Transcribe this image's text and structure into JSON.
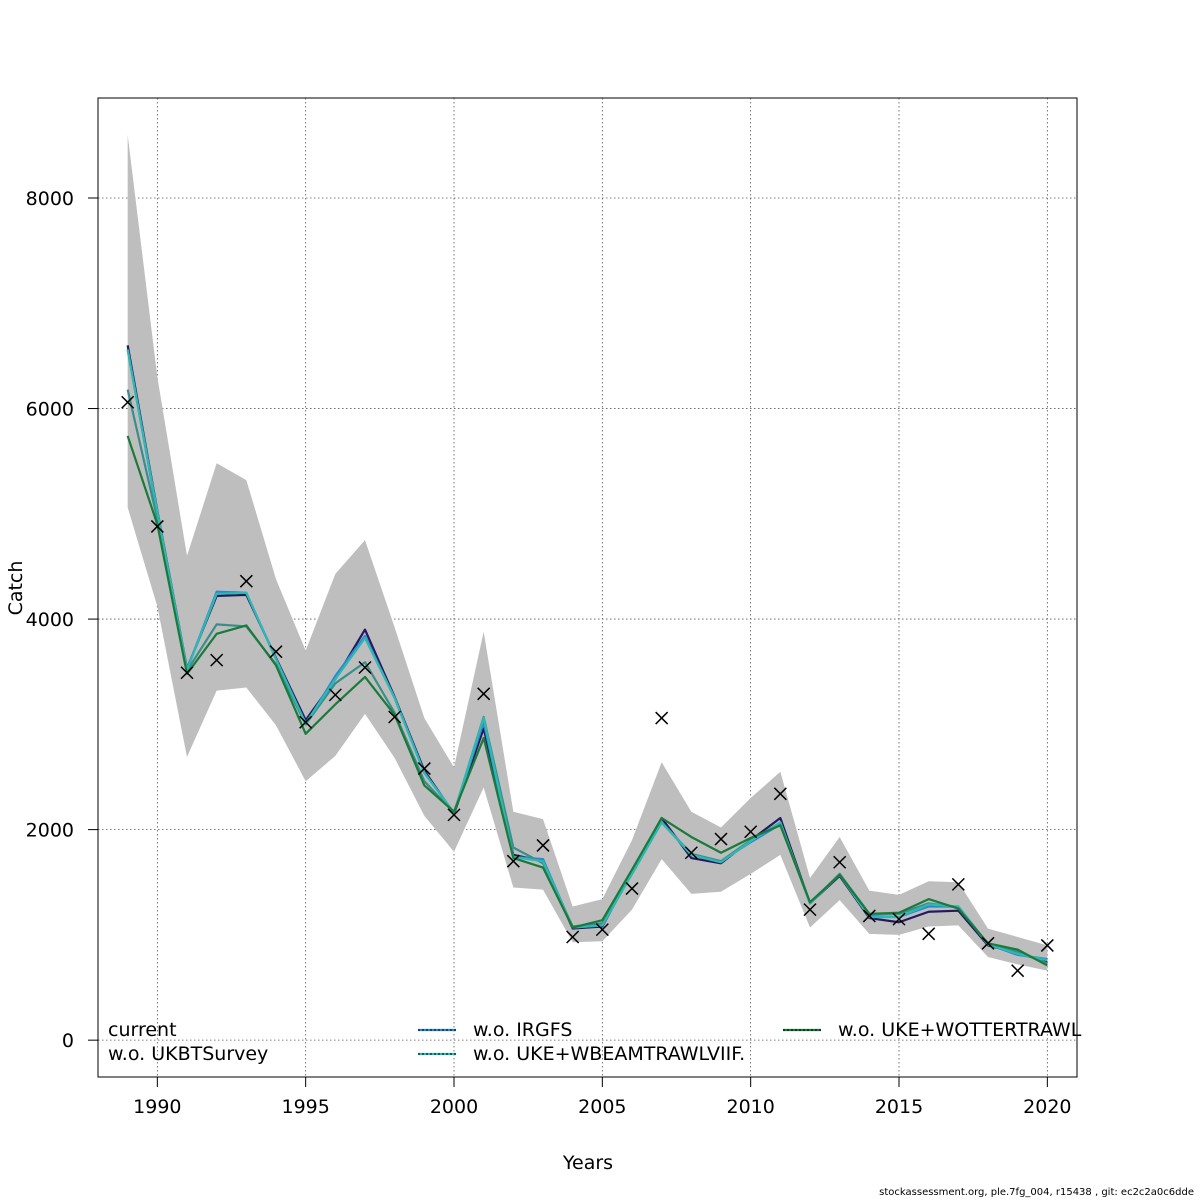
{
  "chart_data": {
    "type": "line",
    "xlabel": "Years",
    "ylabel": "Catch",
    "xlim": [
      1988,
      2021
    ],
    "ylim": [
      -350,
      8950
    ],
    "x_ticks": [
      1990,
      1995,
      2000,
      2005,
      2010,
      2015,
      2020
    ],
    "y_ticks": [
      0,
      2000,
      4000,
      6000,
      8000
    ],
    "grid": true,
    "legend_position": "bottom",
    "x": [
      1989,
      1990,
      1991,
      1992,
      1993,
      1994,
      1995,
      1996,
      1997,
      1998,
      1999,
      2000,
      2001,
      2002,
      2003,
      2004,
      2005,
      2006,
      2007,
      2008,
      2009,
      2010,
      2011,
      2012,
      2013,
      2014,
      2015,
      2016,
      2017,
      2018,
      2019,
      2020
    ],
    "band": {
      "upper": [
        8600,
        6300,
        4600,
        5480,
        5320,
        4380,
        3700,
        4430,
        4750,
        3920,
        3060,
        2590,
        3880,
        2170,
        2100,
        1270,
        1340,
        1900,
        2640,
        2170,
        2020,
        2300,
        2550,
        1540,
        1930,
        1420,
        1380,
        1510,
        1500,
        1060,
        980,
        900
      ],
      "lower": [
        5060,
        4120,
        2690,
        3320,
        3350,
        2990,
        2460,
        2700,
        3100,
        2680,
        2130,
        1790,
        2400,
        1450,
        1430,
        930,
        940,
        1240,
        1720,
        1390,
        1410,
        1580,
        1760,
        1070,
        1330,
        1010,
        1000,
        1080,
        1090,
        790,
        720,
        660
      ]
    },
    "observed": [
      6060,
      4880,
      3490,
      3610,
      4360,
      3690,
      3020,
      3280,
      3540,
      3070,
      2580,
      2140,
      3290,
      1700,
      1850,
      980,
      1050,
      1440,
      3060,
      1780,
      1910,
      1980,
      2340,
      1240,
      1690,
      1180,
      1150,
      1010,
      1480,
      920,
      660,
      900
    ],
    "series": [
      {
        "name": "current",
        "color": "#26185F",
        "values": [
          6600,
          5030,
          3530,
          4220,
          4230,
          3630,
          3040,
          3430,
          3900,
          3260,
          2560,
          2150,
          2960,
          1760,
          1700,
          1060,
          1080,
          1600,
          2110,
          1730,
          1680,
          1900,
          2110,
          1300,
          1560,
          1160,
          1120,
          1220,
          1230,
          900,
          830,
          740
        ]
      },
      {
        "name": "w.o. IRGFS",
        "color": "#2E86D0",
        "values": [
          6560,
          5000,
          3520,
          4260,
          4250,
          3620,
          3000,
          3460,
          3840,
          3250,
          2540,
          2160,
          3020,
          1740,
          1720,
          1070,
          1090,
          1590,
          2070,
          1760,
          1700,
          1880,
          2050,
          1310,
          1570,
          1180,
          1170,
          1270,
          1270,
          910,
          810,
          770
        ]
      },
      {
        "name": "w.o. UKBTSurvey",
        "color": "#3A8E8A",
        "values": [
          6180,
          4950,
          3510,
          3950,
          3930,
          3570,
          3000,
          3390,
          3590,
          3110,
          2460,
          2160,
          3070,
          1830,
          1680,
          1080,
          1110,
          1580,
          2070,
          1770,
          1700,
          1900,
          2060,
          1300,
          1580,
          1200,
          1200,
          1300,
          1260,
          910,
          840,
          730
        ]
      },
      {
        "name": "w.o. UKE+WBEAMTRAWLVIIF.",
        "color": "#2DB8B2",
        "values": [
          6560,
          5020,
          3520,
          4240,
          4250,
          3620,
          3010,
          3430,
          3820,
          3250,
          2540,
          2160,
          3060,
          1740,
          1700,
          1070,
          1090,
          1580,
          2070,
          1760,
          1690,
          1890,
          2070,
          1300,
          1570,
          1170,
          1170,
          1290,
          1270,
          910,
          820,
          760
        ]
      },
      {
        "name": "w.o. UKE+WOTTERTRAWL",
        "color": "#1B7A3A",
        "values": [
          5740,
          4900,
          3480,
          3860,
          3940,
          3560,
          2910,
          3190,
          3450,
          3090,
          2420,
          2170,
          2870,
          1730,
          1640,
          1070,
          1140,
          1620,
          2110,
          1930,
          1780,
          1920,
          2040,
          1310,
          1570,
          1200,
          1210,
          1340,
          1250,
          920,
          860,
          710
        ]
      }
    ]
  },
  "footer": "stockassessment.org, ple.7fg_004, r15438 , git: ec2c2a0c6dde"
}
